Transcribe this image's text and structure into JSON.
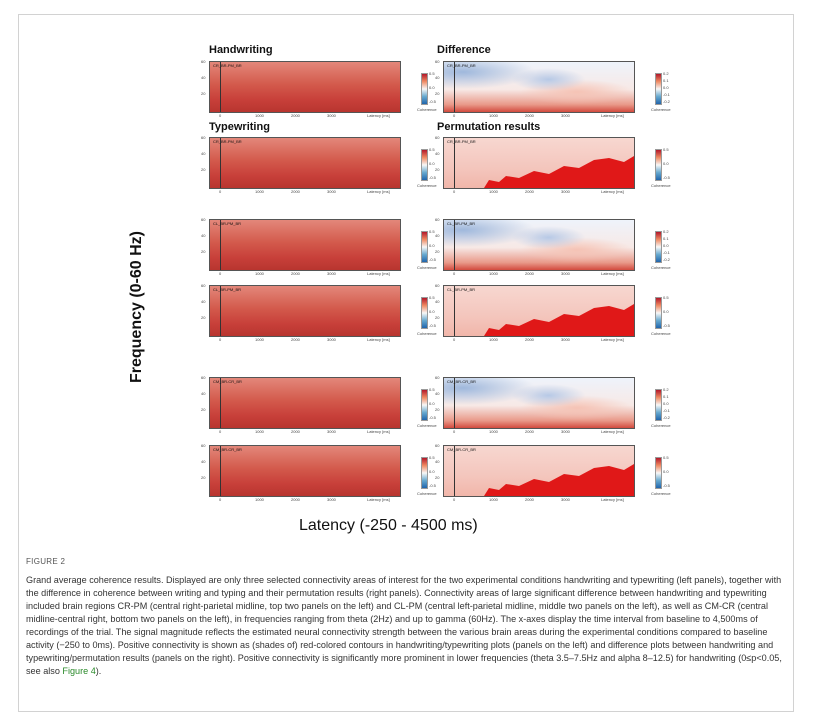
{
  "figure": {
    "y_axis_label": "Frequency (0-60 Hz)",
    "x_axis_label": "Latency (-250 - 4500 ms)",
    "section_titles": {
      "handwriting": "Handwriting",
      "typewriting": "Typewriting",
      "difference": "Difference",
      "permutation": "Permutation results"
    },
    "plot_common": {
      "y_ticks": [
        "60",
        "40",
        "20"
      ],
      "x_ticks": [
        "0",
        "1000",
        "2000",
        "3000",
        "Latency [ms]"
      ],
      "colorbar_label": "Coherence"
    },
    "colors": {
      "coherence_red": "#c8403a",
      "coherence_light": "#f4c6bd",
      "significant_red": "#e01818",
      "negative_blue": "#4f7fbf"
    },
    "panels": [
      {
        "tag": "CR_BR-PM_BR",
        "colorbar_ticks": [
          "0.5",
          "0.0",
          "-0.5"
        ]
      },
      {
        "tag": "CR_BR-PM_BR",
        "colorbar_ticks": [
          "0.2",
          "0.1",
          "0.0",
          "-0.1",
          "-0.2"
        ]
      },
      {
        "tag": "CR_BR-PM_BR",
        "colorbar_ticks": [
          "0.5",
          "0.0",
          "-0.5"
        ]
      },
      {
        "tag": "CR_BR-PM_BR",
        "colorbar_ticks": [
          "0.5",
          "0.0",
          "-0.5"
        ]
      },
      {
        "tag": "CL_BR-PM_BR",
        "colorbar_ticks": [
          "0.5",
          "0.0",
          "-0.5"
        ]
      },
      {
        "tag": "CL_BR-PM_BR",
        "colorbar_ticks": [
          "0.2",
          "0.1",
          "0.0",
          "-0.1",
          "-0.2"
        ]
      },
      {
        "tag": "CL_BR-PM_BR",
        "colorbar_ticks": [
          "0.5",
          "0.0",
          "-0.5"
        ]
      },
      {
        "tag": "CL_BR-PM_BR",
        "colorbar_ticks": [
          "0.5",
          "0.0",
          "-0.5"
        ]
      },
      {
        "tag": "CM_BR-CR_BR",
        "colorbar_ticks": [
          "0.5",
          "0.0",
          "-0.5"
        ]
      },
      {
        "tag": "CM_BR-CR_BR",
        "colorbar_ticks": [
          "0.2",
          "0.1",
          "0.0",
          "-0.1",
          "-0.2"
        ]
      },
      {
        "tag": "CM_BR-CR_BR",
        "colorbar_ticks": [
          "0.5",
          "0.0",
          "-0.5"
        ]
      },
      {
        "tag": "CM_BR-CR_BR",
        "colorbar_ticks": [
          "0.5",
          "0.0",
          "-0.5"
        ]
      }
    ]
  },
  "caption": {
    "label": "FIGURE 2",
    "text_before_link": "Grand average coherence results. Displayed are only three selected connectivity areas of interest for the two experimental conditions handwriting and typewriting (left panels), together with the difference in coherence between writing and typing and their permutation results (right panels). Connectivity areas of large significant difference between handwriting and typewriting included brain regions CR-PM (central right-parietal midline, top two panels on the left) and CL-PM (central left-parietal midline, middle two panels on the left), as well as CM-CR (central midline-central right, bottom two panels on the left), in frequencies ranging from theta (2Hz) and up to gamma (60Hz). The x-axes display the time interval from baseline to 4,500ms of recordings of the trial. The signal magnitude reflects the estimated neural connectivity strength between the various brain areas during the experimental conditions compared to baseline activity (−250 to 0ms). Positive connectivity is shown as (shades of) red-colored contours in handwriting/typewriting plots (panels on the left) and difference plots between handwriting and typewriting/permutation results (panels on the right). Positive connectivity is significantly more prominent in lower frequencies (theta 3.5–7.5Hz and alpha 8–12.5) for handwriting (0≤p<0.05, see also ",
    "link_text": "Figure 4",
    "text_after_link": ")."
  }
}
